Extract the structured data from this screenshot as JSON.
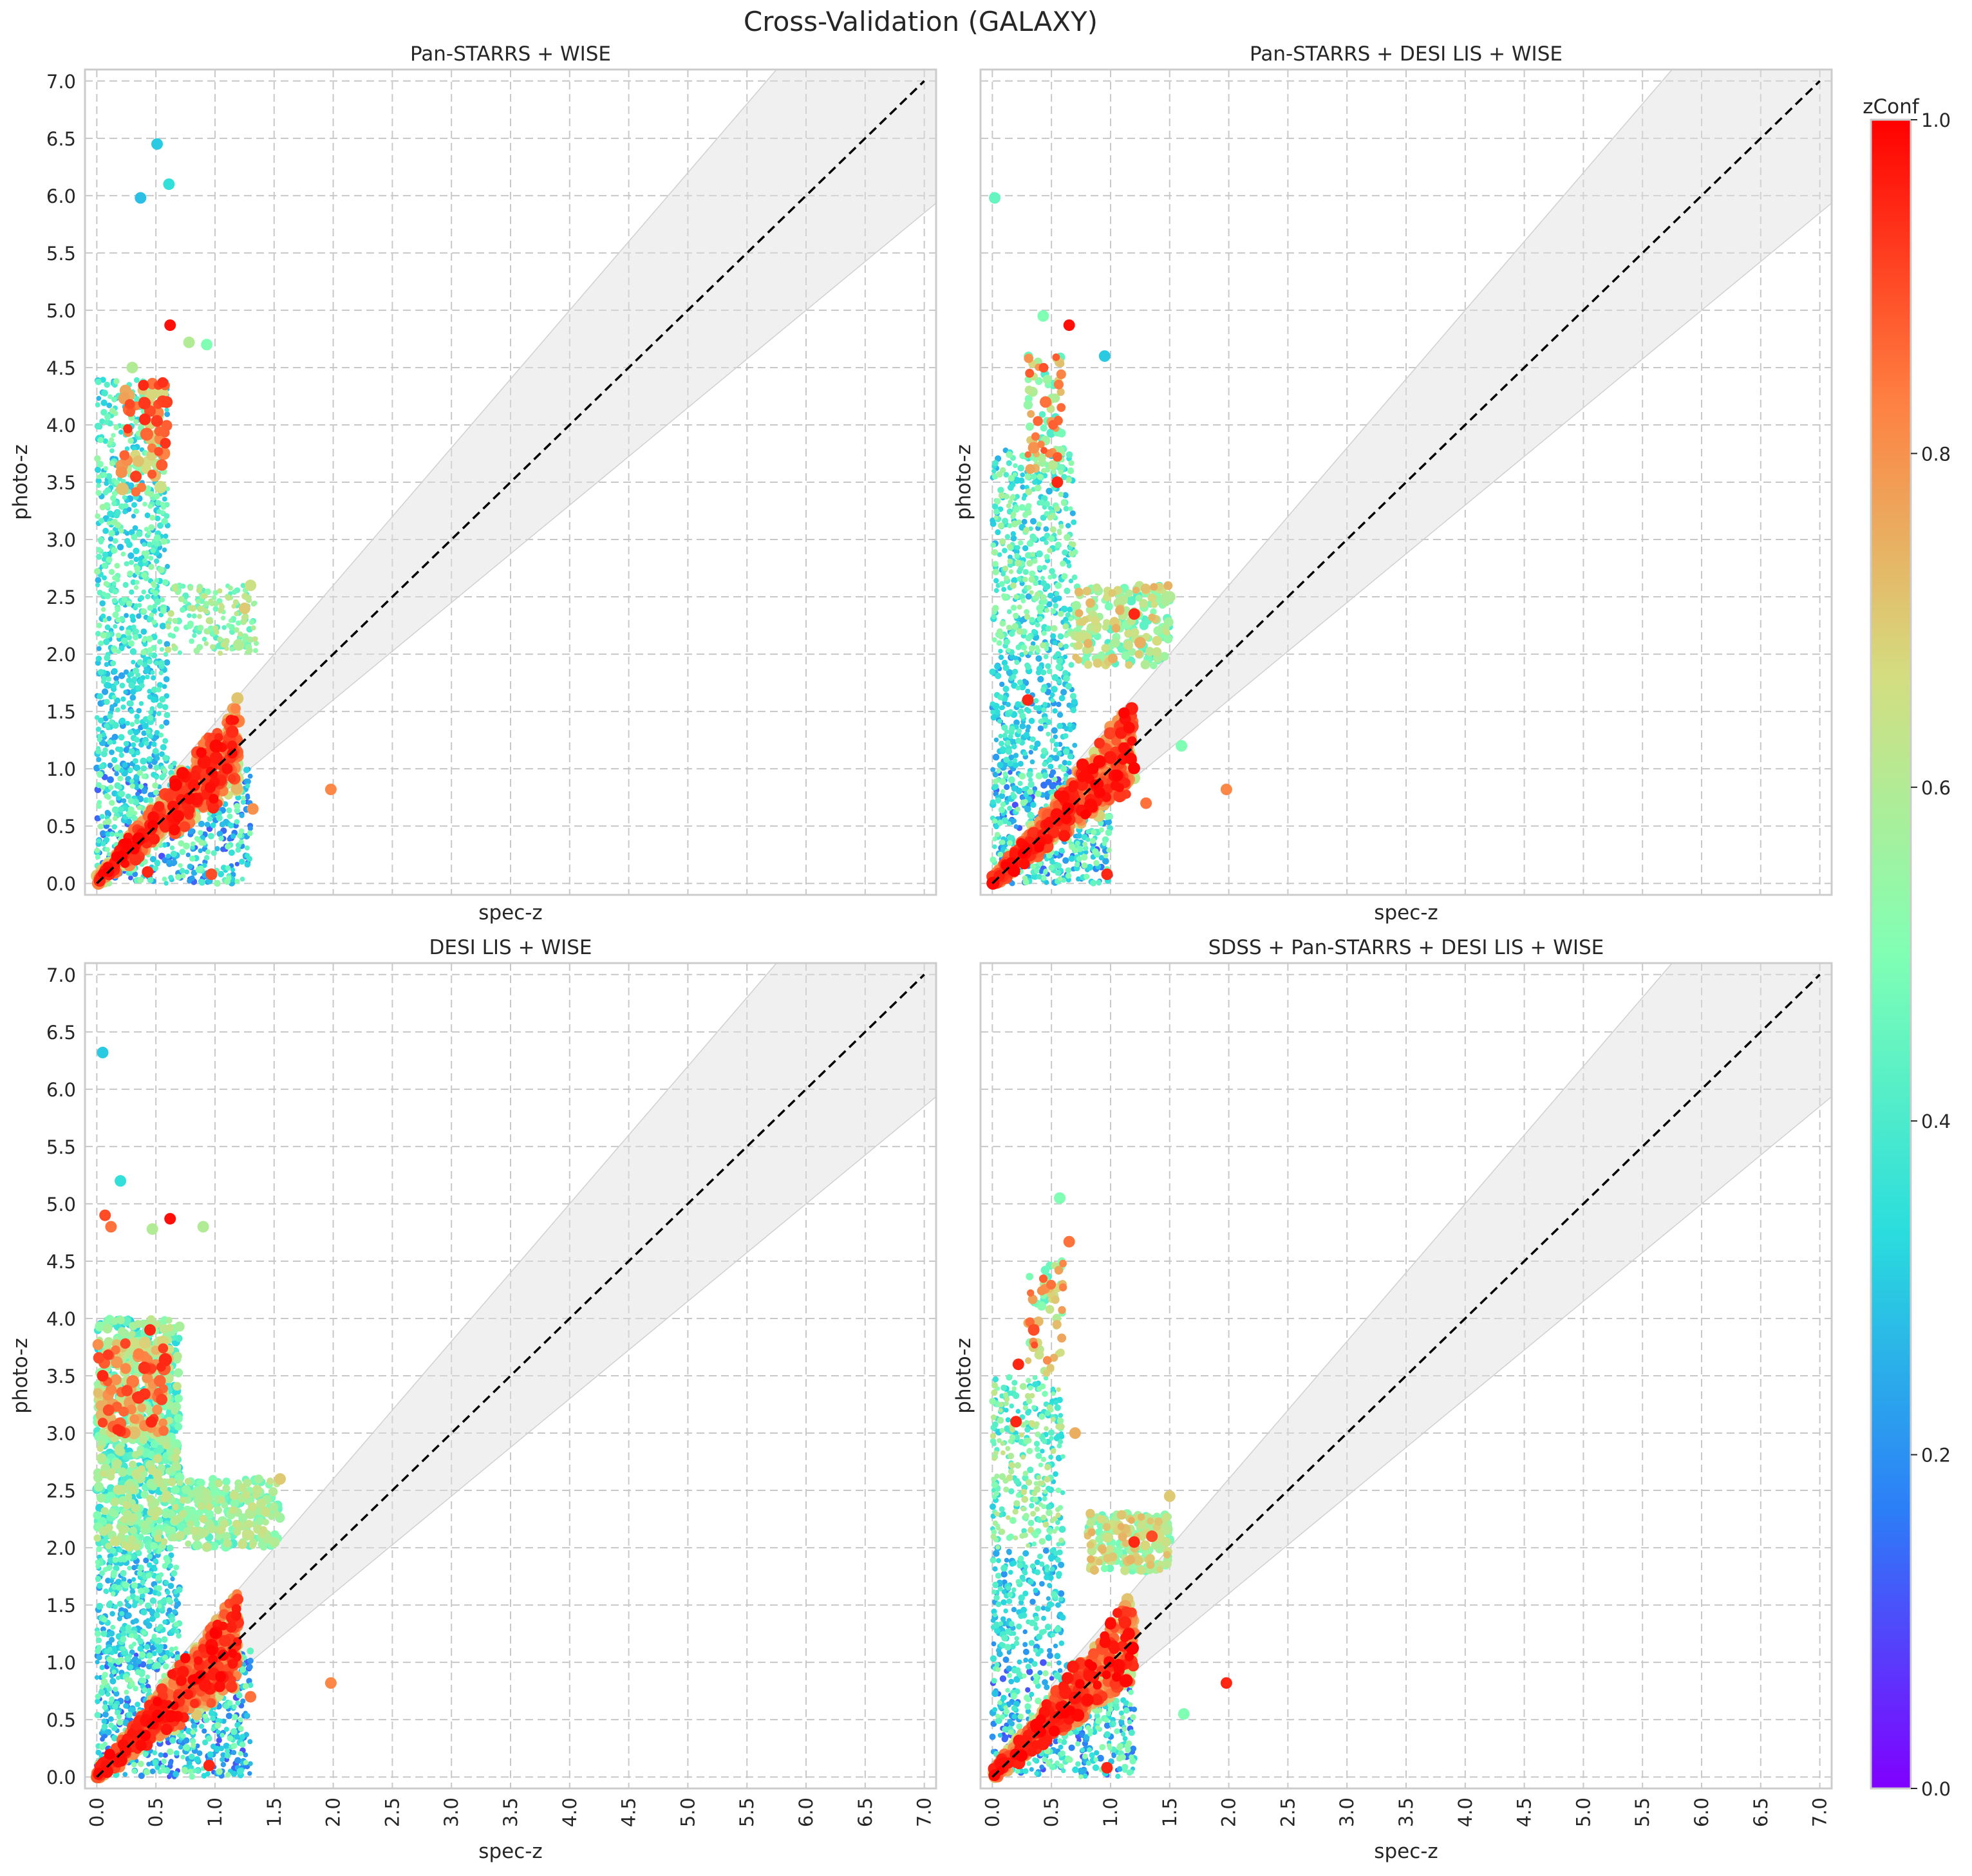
{
  "figure": {
    "title": "Cross-Validation (GALAXY)"
  },
  "colorbar": {
    "label": "zConf",
    "range": [
      0.0,
      1.0
    ],
    "ticks": [
      "0.0",
      "0.2",
      "0.4",
      "0.6",
      "0.8",
      "1.0"
    ],
    "colormap": "rainbow",
    "colors": [
      "#8000ff",
      "#2c7ef7",
      "#2adddd",
      "#80ffb4",
      "#d4dd80",
      "#ff7f41",
      "#ff0000"
    ]
  },
  "styles": {
    "band_color": "#dedede",
    "identity_line_color": "#000000",
    "grid_color": "#c8c8c8",
    "axes_edge_color": "#cccccc"
  },
  "chart_data": [
    {
      "type": "scatter",
      "title": "Pan-STARRS + WISE",
      "xlabel": "spec-z",
      "ylabel": "photo-z",
      "xlim": [
        -0.1,
        7.1
      ],
      "ylim": [
        -0.1,
        7.1
      ],
      "xticks": [
        "0.0",
        "0.5",
        "1.0",
        "1.5",
        "2.0",
        "2.5",
        "3.0",
        "3.5",
        "4.0",
        "4.5",
        "5.0",
        "5.5",
        "6.0",
        "6.5",
        "7.0"
      ],
      "yticks": [
        "0.0",
        "0.5",
        "1.0",
        "1.5",
        "2.0",
        "2.5",
        "3.0",
        "3.5",
        "4.0",
        "4.5",
        "5.0",
        "5.5",
        "6.0",
        "6.5",
        "7.0"
      ],
      "show_xticklabels": false,
      "grid": true,
      "identity_line": {
        "from": [
          0,
          0
        ],
        "to": [
          7,
          7
        ],
        "style": "dashed"
      },
      "band": "shaded region around y = x from x = 0.5 to 7.0",
      "points": [
        [
          0.62,
          4.87,
          0.98
        ],
        [
          1.98,
          0.82,
          0.82
        ],
        [
          0.51,
          6.45,
          0.3
        ],
        [
          0.37,
          5.98,
          0.28
        ],
        [
          0.61,
          6.1,
          0.35
        ],
        [
          0.93,
          4.7,
          0.5
        ],
        [
          0.78,
          4.72,
          0.6
        ],
        [
          0.47,
          4.36,
          0.85
        ],
        [
          0.45,
          4.12,
          0.9
        ],
        [
          0.33,
          3.55,
          0.92
        ],
        [
          0.55,
          3.65,
          0.88
        ],
        [
          0.3,
          4.5,
          0.6
        ],
        [
          0.43,
          0.1,
          0.95
        ],
        [
          0.97,
          0.08,
          0.9
        ],
        [
          1.25,
          2.4,
          0.7
        ],
        [
          1.32,
          0.65,
          0.8
        ],
        [
          1.2,
          2.08,
          0.6
        ],
        [
          1.3,
          2.6,
          0.65
        ],
        [
          0.9,
          1.0,
          0.8
        ],
        [
          0.75,
          0.75,
          0.92
        ]
      ],
      "clusters": [
        {
          "x": [
            0.0,
            1.2
          ],
          "y_over_x": [
            0.7,
            1.3
          ],
          "count": 700,
          "zconf": [
            0.6,
            1.0
          ],
          "size": "large"
        },
        {
          "x": [
            0.0,
            1.3
          ],
          "y": [
            0.0,
            1.05
          ],
          "count": 600,
          "zconf": [
            0.1,
            0.55
          ],
          "size": "small"
        },
        {
          "x": [
            0.0,
            0.6
          ],
          "y": [
            2.0,
            4.4
          ],
          "count": 550,
          "zconf": [
            0.25,
            0.55
          ],
          "size": "small"
        },
        {
          "x": [
            0.0,
            0.6
          ],
          "y": [
            1.0,
            2.0
          ],
          "count": 250,
          "zconf": [
            0.2,
            0.45
          ],
          "size": "small"
        },
        {
          "x": [
            0.6,
            1.35
          ],
          "y": [
            2.0,
            2.6
          ],
          "count": 180,
          "zconf": [
            0.4,
            0.65
          ],
          "size": "small"
        },
        {
          "x": [
            0.2,
            0.6
          ],
          "y": [
            3.4,
            4.4
          ],
          "count": 60,
          "zconf": [
            0.6,
            0.95
          ],
          "size": "large"
        }
      ]
    },
    {
      "type": "scatter",
      "title": "Pan-STARRS + DESI LIS + WISE",
      "xlabel": "spec-z",
      "ylabel": "photo-z",
      "xlim": [
        -0.1,
        7.1
      ],
      "ylim": [
        -0.1,
        7.1
      ],
      "xticks": [
        "0.0",
        "0.5",
        "1.0",
        "1.5",
        "2.0",
        "2.5",
        "3.0",
        "3.5",
        "4.0",
        "4.5",
        "5.0",
        "5.5",
        "6.0",
        "6.5",
        "7.0"
      ],
      "yticks": [
        "0.0",
        "0.5",
        "1.0",
        "1.5",
        "2.0",
        "2.5",
        "3.0",
        "3.5",
        "4.0",
        "4.5",
        "5.0",
        "5.5",
        "6.0",
        "6.5",
        "7.0"
      ],
      "show_xticklabels": false,
      "show_yticklabels": false,
      "grid": true,
      "identity_line": {
        "from": [
          0,
          0
        ],
        "to": [
          7,
          7
        ],
        "style": "dashed"
      },
      "band": "shaded region around y = x from x = 0.5 to 7.0",
      "points": [
        [
          0.65,
          4.87,
          0.98
        ],
        [
          1.98,
          0.82,
          0.82
        ],
        [
          0.02,
          5.98,
          0.45
        ],
        [
          0.43,
          4.95,
          0.5
        ],
        [
          0.95,
          4.6,
          0.3
        ],
        [
          0.55,
          3.5,
          0.95
        ],
        [
          0.3,
          1.6,
          0.95
        ],
        [
          0.97,
          0.08,
          0.95
        ],
        [
          1.2,
          2.35,
          0.95
        ],
        [
          1.5,
          2.5,
          0.6
        ],
        [
          1.3,
          0.7,
          0.85
        ],
        [
          1.6,
          1.2,
          0.5
        ],
        [
          0.45,
          4.2,
          0.85
        ],
        [
          0.35,
          3.8,
          0.8
        ],
        [
          1.25,
          2.1,
          0.75
        ]
      ],
      "clusters": [
        {
          "x": [
            0.0,
            1.2
          ],
          "y_over_x": [
            0.7,
            1.3
          ],
          "count": 700,
          "zconf": [
            0.6,
            1.0
          ],
          "size": "large"
        },
        {
          "x": [
            0.0,
            1.0
          ],
          "y": [
            0.0,
            1.0
          ],
          "count": 500,
          "zconf": [
            0.1,
            0.55
          ],
          "size": "small"
        },
        {
          "x": [
            0.0,
            0.7
          ],
          "y": [
            2.0,
            3.8
          ],
          "count": 450,
          "zconf": [
            0.25,
            0.6
          ],
          "size": "small"
        },
        {
          "x": [
            0.0,
            0.7
          ],
          "y": [
            1.0,
            2.0
          ],
          "count": 250,
          "zconf": [
            0.2,
            0.45
          ],
          "size": "small"
        },
        {
          "x": [
            0.7,
            1.5
          ],
          "y": [
            1.9,
            2.6
          ],
          "count": 200,
          "zconf": [
            0.4,
            0.75
          ],
          "size": "medium"
        },
        {
          "x": [
            0.3,
            0.6
          ],
          "y": [
            3.6,
            4.6
          ],
          "count": 70,
          "zconf": [
            0.4,
            0.9
          ],
          "size": "medium"
        }
      ]
    },
    {
      "type": "scatter",
      "title": "DESI LIS + WISE",
      "xlabel": "spec-z",
      "ylabel": "photo-z",
      "xlim": [
        -0.1,
        7.1
      ],
      "ylim": [
        -0.1,
        7.1
      ],
      "xticks": [
        "0.0",
        "0.5",
        "1.0",
        "1.5",
        "2.0",
        "2.5",
        "3.0",
        "3.5",
        "4.0",
        "4.5",
        "5.0",
        "5.5",
        "6.0",
        "6.5",
        "7.0"
      ],
      "yticks": [
        "0.0",
        "0.5",
        "1.0",
        "1.5",
        "2.0",
        "2.5",
        "3.0",
        "3.5",
        "4.0",
        "4.5",
        "5.0",
        "5.5",
        "6.0",
        "6.5",
        "7.0"
      ],
      "show_xticklabels": true,
      "grid": true,
      "identity_line": {
        "from": [
          0,
          0
        ],
        "to": [
          7,
          7
        ],
        "style": "dashed"
      },
      "band": "shaded region around y = x from x = 0.5 to 7.0",
      "points": [
        [
          0.62,
          4.87,
          0.98
        ],
        [
          1.98,
          0.82,
          0.82
        ],
        [
          0.05,
          6.32,
          0.3
        ],
        [
          0.2,
          5.2,
          0.35
        ],
        [
          0.07,
          4.9,
          0.9
        ],
        [
          0.12,
          4.8,
          0.85
        ],
        [
          0.47,
          4.78,
          0.6
        ],
        [
          0.9,
          4.8,
          0.6
        ],
        [
          0.45,
          3.9,
          0.95
        ],
        [
          0.95,
          0.1,
          0.95
        ],
        [
          1.3,
          0.7,
          0.85
        ],
        [
          1.55,
          2.6,
          0.7
        ],
        [
          0.05,
          3.5,
          0.95
        ],
        [
          0.1,
          3.2,
          0.9
        ],
        [
          1.3,
          2.3,
          0.6
        ]
      ],
      "clusters": [
        {
          "x": [
            0.0,
            1.2
          ],
          "y_over_x": [
            0.7,
            1.3
          ],
          "count": 750,
          "zconf": [
            0.6,
            1.0
          ],
          "size": "large"
        },
        {
          "x": [
            0.0,
            1.3
          ],
          "y": [
            0.0,
            1.1
          ],
          "count": 650,
          "zconf": [
            0.1,
            0.55
          ],
          "size": "small"
        },
        {
          "x": [
            0.0,
            0.7
          ],
          "y": [
            2.0,
            4.0
          ],
          "count": 800,
          "zconf": [
            0.3,
            0.65
          ],
          "size": "medium"
        },
        {
          "x": [
            0.0,
            0.7
          ],
          "y": [
            1.0,
            2.0
          ],
          "count": 350,
          "zconf": [
            0.2,
            0.5
          ],
          "size": "small"
        },
        {
          "x": [
            0.7,
            1.55
          ],
          "y": [
            2.0,
            2.6
          ],
          "count": 250,
          "zconf": [
            0.4,
            0.65
          ],
          "size": "medium"
        },
        {
          "x": [
            0.0,
            0.6
          ],
          "y": [
            3.0,
            3.8
          ],
          "count": 120,
          "zconf": [
            0.6,
            0.95
          ],
          "size": "large"
        }
      ]
    },
    {
      "type": "scatter",
      "title": "SDSS + Pan-STARRS + DESI LIS + WISE",
      "xlabel": "spec-z",
      "ylabel": "photo-z",
      "xlim": [
        -0.1,
        7.1
      ],
      "ylim": [
        -0.1,
        7.1
      ],
      "xticks": [
        "0.0",
        "0.5",
        "1.0",
        "1.5",
        "2.0",
        "2.5",
        "3.0",
        "3.5",
        "4.0",
        "4.5",
        "5.0",
        "5.5",
        "6.0",
        "6.5",
        "7.0"
      ],
      "yticks": [
        "0.0",
        "0.5",
        "1.0",
        "1.5",
        "2.0",
        "2.5",
        "3.0",
        "3.5",
        "4.0",
        "4.5",
        "5.0",
        "5.5",
        "6.0",
        "6.5",
        "7.0"
      ],
      "show_xticklabels": true,
      "show_yticklabels": false,
      "grid": true,
      "identity_line": {
        "from": [
          0,
          0
        ],
        "to": [
          7,
          7
        ],
        "style": "dashed"
      },
      "band": "shaded region around y = x from x = 0.5 to 7.0",
      "points": [
        [
          1.98,
          0.82,
          0.95
        ],
        [
          0.97,
          0.08,
          0.95
        ],
        [
          0.57,
          5.05,
          0.5
        ],
        [
          0.65,
          4.67,
          0.85
        ],
        [
          0.35,
          3.9,
          0.9
        ],
        [
          0.22,
          3.6,
          0.95
        ],
        [
          0.2,
          3.1,
          0.95
        ],
        [
          1.5,
          2.45,
          0.7
        ],
        [
          1.35,
          2.1,
          0.9
        ],
        [
          1.62,
          0.55,
          0.5
        ],
        [
          0.45,
          4.3,
          0.6
        ],
        [
          0.7,
          3.0,
          0.75
        ],
        [
          1.2,
          2.05,
          0.95
        ]
      ],
      "clusters": [
        {
          "x": [
            0.0,
            1.2
          ],
          "y_over_x": [
            0.7,
            1.3
          ],
          "count": 650,
          "zconf": [
            0.6,
            1.0
          ],
          "size": "large"
        },
        {
          "x": [
            0.0,
            1.2
          ],
          "y": [
            0.0,
            1.0
          ],
          "count": 500,
          "zconf": [
            0.1,
            0.55
          ],
          "size": "small"
        },
        {
          "x": [
            0.0,
            0.6
          ],
          "y": [
            2.0,
            3.5
          ],
          "count": 300,
          "zconf": [
            0.3,
            0.65
          ],
          "size": "small"
        },
        {
          "x": [
            0.0,
            0.6
          ],
          "y": [
            1.0,
            2.0
          ],
          "count": 200,
          "zconf": [
            0.2,
            0.45
          ],
          "size": "small"
        },
        {
          "x": [
            0.8,
            1.5
          ],
          "y": [
            1.8,
            2.3
          ],
          "count": 200,
          "zconf": [
            0.45,
            0.75
          ],
          "size": "medium"
        },
        {
          "x": [
            0.3,
            0.6
          ],
          "y": [
            3.5,
            4.5
          ],
          "count": 60,
          "zconf": [
            0.4,
            0.9
          ],
          "size": "medium"
        }
      ]
    }
  ]
}
